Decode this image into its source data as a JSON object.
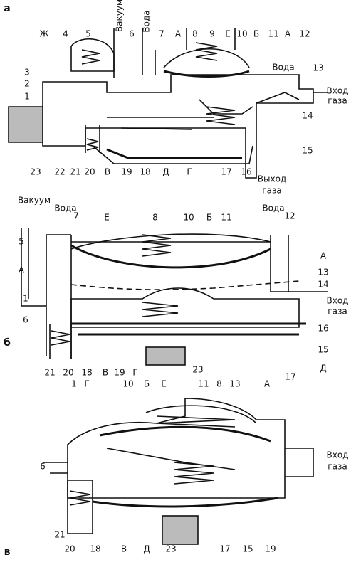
{
  "panels": [
    {
      "letter": "а",
      "labels": [
        "Ж",
        "4",
        "5",
        "Вакуум",
        "6",
        "Вода",
        "7",
        "А",
        "8",
        "9",
        "Е",
        "10",
        "Б",
        "11",
        "А",
        "12",
        "Вода",
        "13",
        "Вход",
        "газа",
        "3",
        "2",
        "1",
        "14",
        "15",
        "23",
        "22",
        "21",
        "20",
        "В",
        "19",
        "18",
        "Д",
        "Г",
        "17",
        "16",
        "Выход",
        "газа"
      ]
    },
    {
      "letter": "б",
      "labels": [
        "Вакуум",
        "Вода",
        "7",
        "5",
        "Е",
        "8",
        "10",
        "Б",
        "11",
        "Вода",
        "12",
        "А",
        "А",
        "13",
        "14",
        "Вход",
        "газа",
        "1",
        "6",
        "16",
        "15",
        "21",
        "20",
        "18",
        "В",
        "19",
        "Г",
        "23",
        "17",
        "Д"
      ]
    },
    {
      "letter": "в",
      "labels": [
        "1",
        "Г",
        "10",
        "Б",
        "Е",
        "11",
        "8",
        "13",
        "А",
        "Вход",
        "газа",
        "6",
        "21",
        "20",
        "18",
        "В",
        "Д",
        "23",
        "17",
        "15",
        "19"
      ]
    }
  ]
}
